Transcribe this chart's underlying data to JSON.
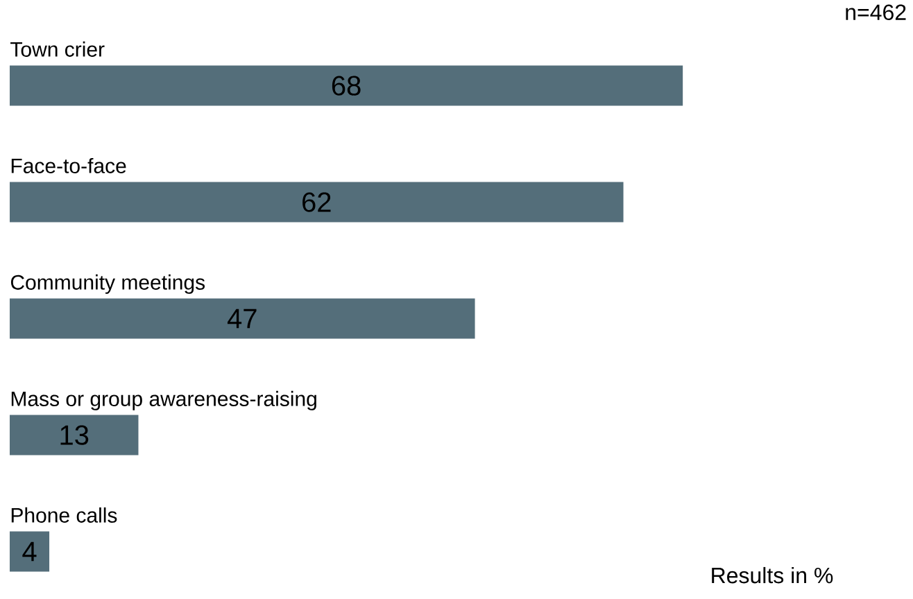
{
  "chart_data": {
    "type": "bar",
    "orientation": "horizontal",
    "categories": [
      "Town crier",
      "Face-to-face",
      "Community meetings",
      "Mass or group awareness-raising",
      "Phone calls"
    ],
    "values": [
      68,
      62,
      47,
      13,
      4
    ],
    "color": "#546e7a",
    "data_labels": true,
    "annotations": [
      "n=462",
      "Results in %"
    ]
  }
}
